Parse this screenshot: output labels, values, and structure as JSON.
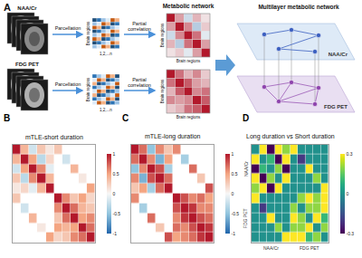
{
  "panel_a": {
    "label": "A",
    "layers": [
      "NAA/Cr",
      "FDG PET"
    ],
    "step1": "Parcellation",
    "step2": "Partial correlation",
    "matrix_axis": "Brain regions",
    "region_index": "1,2,...n",
    "network_title": "Metabolic network",
    "multilayer_title": "Multilayer metabolic network"
  },
  "chart_data": [
    {
      "type": "heatmap",
      "label": "B",
      "title": "mTLE-short duration",
      "tick_labels": false,
      "zlim": [
        -1,
        1
      ],
      "zticks": [
        -1,
        -0.5,
        0,
        0.5,
        1
      ],
      "cells": [
        [
          1,
          0.4,
          -0.2,
          0.3,
          0.1,
          0.3,
          null,
          null,
          null,
          null
        ],
        [
          0.4,
          1,
          0.5,
          -0.3,
          0.2,
          null,
          -0.2,
          null,
          null,
          null
        ],
        [
          -0.2,
          0.5,
          1,
          0.6,
          -0.1,
          null,
          null,
          0.4,
          null,
          null
        ],
        [
          0.3,
          -0.3,
          0.6,
          1,
          0.4,
          null,
          null,
          null,
          0.1,
          null
        ],
        [
          0.1,
          0.2,
          -0.1,
          0.4,
          1,
          null,
          null,
          null,
          null,
          0.5
        ],
        [
          0.3,
          null,
          null,
          null,
          null,
          1,
          0.6,
          0.3,
          0.5,
          0.2
        ],
        [
          null,
          -0.2,
          null,
          null,
          null,
          0.6,
          1,
          0.7,
          0.4,
          0.3
        ],
        [
          null,
          null,
          0.4,
          null,
          null,
          0.3,
          0.7,
          1,
          0.5,
          0.6
        ],
        [
          null,
          null,
          null,
          0.1,
          null,
          0.5,
          0.4,
          0.5,
          1,
          0.7
        ],
        [
          null,
          null,
          null,
          null,
          0.5,
          0.2,
          0.3,
          0.6,
          0.7,
          1
        ]
      ]
    },
    {
      "type": "heatmap",
      "label": "C",
      "title": "mTLE-long duration",
      "tick_labels": false,
      "zlim": [
        -1,
        1
      ],
      "zticks": [
        -1,
        -0.5,
        0,
        0.5,
        1
      ],
      "cells": [
        [
          1,
          0.7,
          -0.5,
          0.6,
          0.3,
          0.6,
          null,
          null,
          null,
          null
        ],
        [
          0.7,
          1,
          0.6,
          -0.6,
          0.5,
          null,
          -0.4,
          null,
          null,
          null
        ],
        [
          -0.5,
          0.6,
          1,
          0.8,
          -0.4,
          null,
          null,
          0.7,
          null,
          null
        ],
        [
          0.6,
          -0.6,
          0.8,
          1,
          0.7,
          null,
          null,
          null,
          0.3,
          null
        ],
        [
          0.3,
          0.5,
          -0.4,
          0.7,
          1,
          null,
          null,
          null,
          null,
          0.8
        ],
        [
          0.6,
          null,
          null,
          null,
          null,
          1,
          0.8,
          0.6,
          0.7,
          0.5
        ],
        [
          null,
          -0.4,
          null,
          null,
          null,
          0.8,
          1,
          0.9,
          0.6,
          0.6
        ],
        [
          null,
          null,
          0.7,
          null,
          null,
          0.6,
          0.9,
          1,
          0.8,
          0.7
        ],
        [
          null,
          null,
          null,
          0.3,
          null,
          0.7,
          0.6,
          0.8,
          1,
          0.9
        ],
        [
          null,
          null,
          null,
          null,
          0.8,
          0.5,
          0.6,
          0.7,
          0.9,
          1
        ]
      ]
    },
    {
      "type": "heatmap",
      "label": "D",
      "title": "Long duration vs Short duration",
      "tick_labels": false,
      "layers": [
        "NAA/Cr",
        "FDG PET"
      ],
      "zlim": [
        -0.3,
        0.3
      ],
      "zticks": [
        -0.3,
        0,
        0.3
      ],
      "cells": [
        [
          0,
          0.3,
          -0.3,
          0.3,
          0.2,
          0.3,
          0,
          0,
          0,
          0
        ],
        [
          0.3,
          0,
          0.1,
          -0.3,
          0.3,
          0,
          -0.2,
          0,
          0,
          0
        ],
        [
          -0.3,
          0.1,
          0,
          0.2,
          -0.3,
          0,
          0,
          0.3,
          0,
          0
        ],
        [
          0.3,
          -0.3,
          0.2,
          0,
          0.3,
          0,
          0,
          0,
          0.2,
          0
        ],
        [
          0.2,
          0.3,
          -0.3,
          0.3,
          0,
          0,
          0,
          0,
          0,
          0.3
        ],
        [
          0.3,
          0,
          0,
          0,
          0,
          0,
          0.2,
          0.3,
          0.2,
          0.3
        ],
        [
          0,
          -0.2,
          0,
          0,
          0,
          0.2,
          0,
          0.2,
          0.2,
          0.3
        ],
        [
          0,
          0,
          0.3,
          0,
          0,
          0.3,
          0.2,
          0,
          0.3,
          0.1
        ],
        [
          0,
          0,
          0,
          0.2,
          0,
          0.2,
          0.2,
          0.3,
          0,
          0.2
        ],
        [
          0,
          0,
          0,
          0,
          0.3,
          0.3,
          0.3,
          0.1,
          0.2,
          0
        ]
      ]
    }
  ]
}
